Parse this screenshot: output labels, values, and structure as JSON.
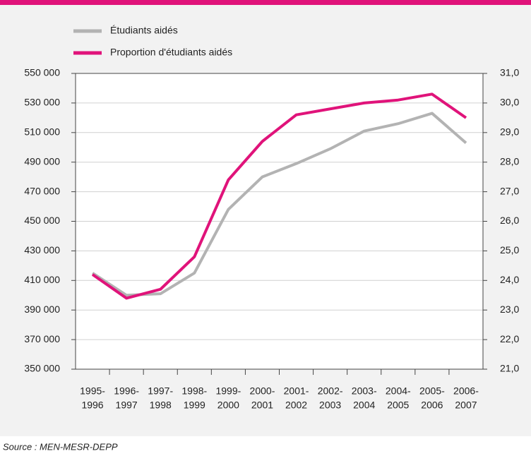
{
  "chart_data": {
    "type": "line",
    "categories": [
      [
        "1995-",
        "1996"
      ],
      [
        "1996-",
        "1997"
      ],
      [
        "1997-",
        "1998"
      ],
      [
        "1998-",
        "1999"
      ],
      [
        "1999-",
        "2000"
      ],
      [
        "2000-",
        "2001"
      ],
      [
        "2001-",
        "2002"
      ],
      [
        "2002-",
        "2003"
      ],
      [
        "2003-",
        "2004"
      ],
      [
        "2004-",
        "2005"
      ],
      [
        "2005-",
        "2006"
      ],
      [
        "2006-",
        "2007"
      ]
    ],
    "series": [
      {
        "name": "Étudiants aidés",
        "color": "#b3b3b3",
        "values": [
          415000,
          400000,
          401000,
          415000,
          458000,
          480000,
          489000,
          499000,
          511000,
          516000,
          523000,
          503000
        ]
      },
      {
        "name": "Proportion d'étudiants aidés",
        "color": "#e0137a",
        "axis": "y2",
        "values": [
          24.2,
          23.4,
          23.7,
          24.8,
          27.4,
          28.7,
          29.6,
          29.8,
          30.0,
          30.1,
          30.3,
          29.5
        ]
      }
    ],
    "ylim": [
      350000,
      550000
    ],
    "yticks": [
      {
        "value": 350000,
        "label": "350 000"
      },
      {
        "value": 370000,
        "label": "370 000"
      },
      {
        "value": 390000,
        "label": "390 000"
      },
      {
        "value": 410000,
        "label": "410 000"
      },
      {
        "value": 430000,
        "label": "430 000"
      },
      {
        "value": 450000,
        "label": "450 000"
      },
      {
        "value": 470000,
        "label": "470 000"
      },
      {
        "value": 490000,
        "label": "490 000"
      },
      {
        "value": 510000,
        "label": "510 000"
      },
      {
        "value": 530000,
        "label": "530 000"
      },
      {
        "value": 550000,
        "label": "550 000"
      }
    ],
    "y2lim": [
      21,
      31
    ],
    "y2ticks": [
      {
        "value": 21,
        "label": "21,0"
      },
      {
        "value": 22,
        "label": "22,0"
      },
      {
        "value": 23,
        "label": "23,0"
      },
      {
        "value": 24,
        "label": "24,0"
      },
      {
        "value": 25,
        "label": "25,0"
      },
      {
        "value": 26,
        "label": "26,0"
      },
      {
        "value": 27,
        "label": "27,0"
      },
      {
        "value": 28,
        "label": "28,0"
      },
      {
        "value": 29,
        "label": "29,0"
      },
      {
        "value": 30,
        "label": "30,0"
      },
      {
        "value": 31,
        "label": "31,0"
      }
    ],
    "grid": true,
    "source": "Source : MEN-MESR-DEPP"
  }
}
